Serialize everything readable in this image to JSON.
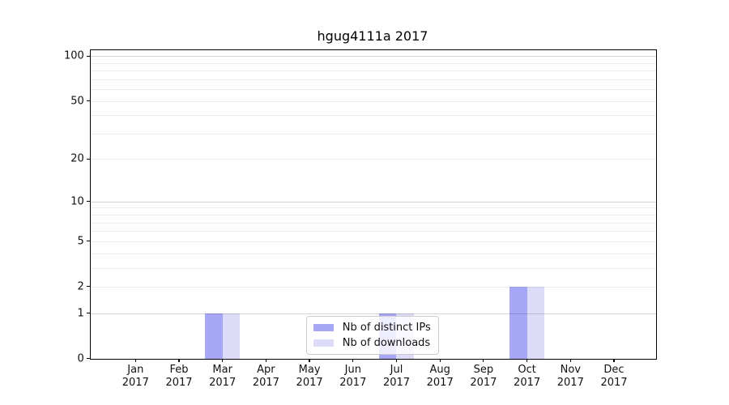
{
  "figure": {
    "title": "hgug4111a 2017"
  },
  "chart_data": {
    "type": "bar",
    "title": "hgug4111a 2017",
    "categories": [
      "Jan",
      "Feb",
      "Mar",
      "Apr",
      "May",
      "Jun",
      "Jul",
      "Aug",
      "Sep",
      "Oct",
      "Nov",
      "Dec"
    ],
    "category_year": "2017",
    "series": [
      {
        "name": "Nb of distinct IPs",
        "color": "#a7a7f8",
        "values": [
          0,
          0,
          1,
          0,
          0,
          0,
          1,
          0,
          0,
          2,
          0,
          0
        ]
      },
      {
        "name": "Nb of downloads",
        "color": "#dcdcf8",
        "values": [
          0,
          0,
          1,
          0,
          0,
          0,
          1,
          0,
          0,
          2,
          0,
          0
        ]
      }
    ],
    "yscale": "log1p",
    "ylim": [
      0,
      110
    ],
    "ytick_labels": [
      0,
      1,
      2,
      5,
      10,
      20,
      50,
      100
    ],
    "ytick_emphasis": [
      1,
      10,
      100
    ],
    "minor_yticks": [
      3,
      4,
      6,
      7,
      8,
      9,
      30,
      40,
      60,
      70,
      80,
      90
    ],
    "grid": true,
    "legend": {
      "position": "inside-bottom-center",
      "entries": [
        "Nb of distinct IPs",
        "Nb of downloads"
      ]
    }
  }
}
